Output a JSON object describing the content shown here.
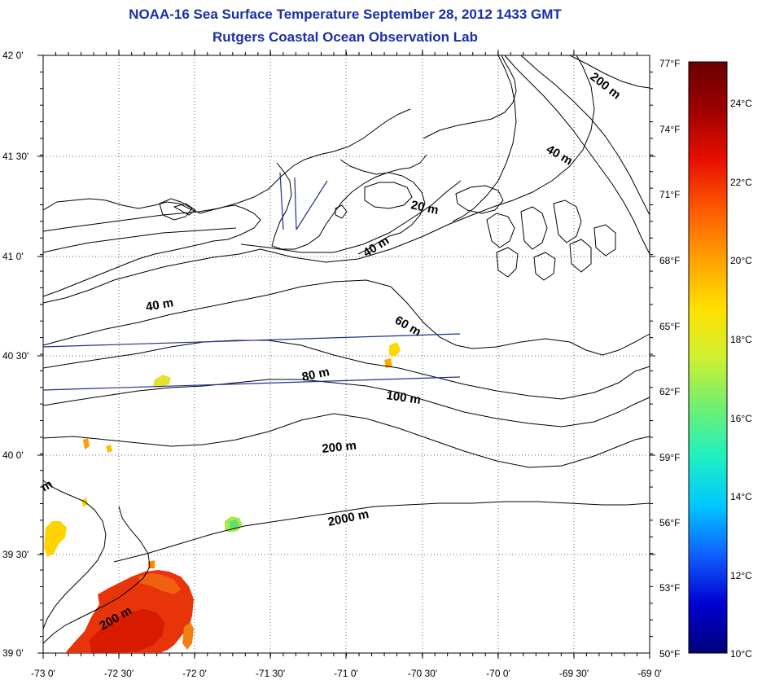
{
  "title": "NOAA-16 Sea Surface Temperature September 28, 2012 1433 GMT",
  "subtitle": "Rutgers Coastal Ocean Observation Lab",
  "x_ticks": [
    "-73 0'",
    "-72 30'",
    "-72 0'",
    "-71 30'",
    "-71 0'",
    "-70 30'",
    "-70 0'",
    "-69 30'",
    "-69 0'"
  ],
  "y_ticks": [
    "42 0'",
    "41 30'",
    "41 0'",
    "40 30'",
    "40 0'",
    "39 30'",
    "39 0'"
  ],
  "colorbar": {
    "fahrenheit_ticks": [
      "77°F",
      "74°F",
      "71°F",
      "68°F",
      "65°F",
      "62°F",
      "59°F",
      "56°F",
      "53°F",
      "50°F"
    ],
    "celsius_ticks": [
      "24°C",
      "22°C",
      "20°C",
      "18°C",
      "16°C",
      "14°C",
      "12°C",
      "10°C"
    ],
    "colors": [
      "#00007a",
      "#0000d0",
      "#1060ff",
      "#00c8ff",
      "#20f0c0",
      "#70f070",
      "#d0f030",
      "#ffe000",
      "#ffa000",
      "#ff5a00",
      "#e81000",
      "#a00000",
      "#6a0000"
    ]
  },
  "depth_labels": [
    "200 m",
    "40 m",
    "20 m",
    "40 m",
    "40 m",
    "60 m",
    "80 m",
    "100 m",
    "200 m",
    "2000 m",
    "200 m",
    "m"
  ],
  "ocean_color": "#ffffff",
  "track_color": "#1f2f8f"
}
